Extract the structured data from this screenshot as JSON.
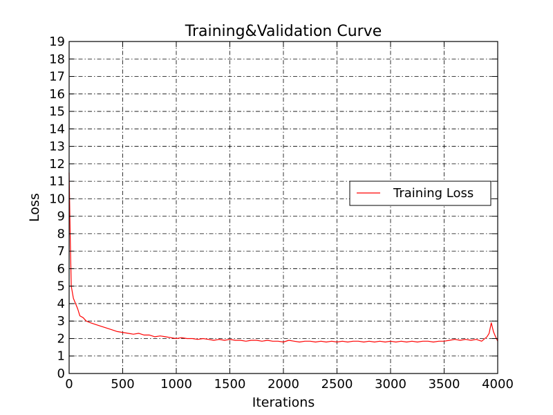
{
  "chart_data": {
    "type": "line",
    "title": "Training&Validation Curve",
    "xlabel": "Iterations",
    "ylabel": "Loss",
    "xlim": [
      0,
      4000
    ],
    "ylim": [
      0,
      19
    ],
    "x_ticks": [
      0,
      500,
      1000,
      1500,
      2000,
      2500,
      3000,
      3500,
      4000
    ],
    "y_ticks": [
      0,
      1,
      2,
      3,
      4,
      5,
      6,
      7,
      8,
      9,
      10,
      11,
      12,
      13,
      14,
      15,
      16,
      17,
      18,
      19
    ],
    "grid": true,
    "legend_position": "center-right",
    "series": [
      {
        "name": "Training Loss",
        "color": "#ff0000",
        "x": [
          0,
          10,
          20,
          40,
          60,
          80,
          100,
          130,
          160,
          200,
          250,
          300,
          350,
          400,
          450,
          500,
          550,
          600,
          650,
          700,
          750,
          800,
          850,
          900,
          950,
          1000,
          1050,
          1100,
          1150,
          1200,
          1250,
          1300,
          1350,
          1400,
          1450,
          1500,
          1550,
          1600,
          1650,
          1700,
          1750,
          1800,
          1850,
          1900,
          1950,
          2000,
          2050,
          2100,
          2150,
          2200,
          2250,
          2300,
          2350,
          2400,
          2450,
          2500,
          2550,
          2600,
          2650,
          2700,
          2750,
          2800,
          2850,
          2900,
          2950,
          3000,
          3050,
          3100,
          3150,
          3200,
          3250,
          3300,
          3350,
          3400,
          3450,
          3500,
          3550,
          3600,
          3650,
          3700,
          3750,
          3800,
          3850,
          3900,
          3920,
          3940,
          3960,
          3980,
          4000
        ],
        "y": [
          11.5,
          8.0,
          5.0,
          4.3,
          4.0,
          3.7,
          3.3,
          3.2,
          3.0,
          2.9,
          2.8,
          2.7,
          2.6,
          2.5,
          2.4,
          2.35,
          2.3,
          2.25,
          2.3,
          2.2,
          2.2,
          2.1,
          2.15,
          2.1,
          2.05,
          2.0,
          2.05,
          2.0,
          2.0,
          1.95,
          2.0,
          1.95,
          1.9,
          1.95,
          1.9,
          1.95,
          1.9,
          1.9,
          1.85,
          1.9,
          1.9,
          1.85,
          1.9,
          1.85,
          1.85,
          1.8,
          1.9,
          1.85,
          1.8,
          1.85,
          1.85,
          1.8,
          1.85,
          1.8,
          1.85,
          1.8,
          1.85,
          1.8,
          1.85,
          1.85,
          1.8,
          1.85,
          1.8,
          1.85,
          1.8,
          1.85,
          1.8,
          1.85,
          1.8,
          1.85,
          1.8,
          1.85,
          1.85,
          1.8,
          1.85,
          1.85,
          1.9,
          1.95,
          1.9,
          1.95,
          1.9,
          1.95,
          1.85,
          2.1,
          2.3,
          2.9,
          2.4,
          2.1,
          1.85
        ]
      }
    ]
  }
}
